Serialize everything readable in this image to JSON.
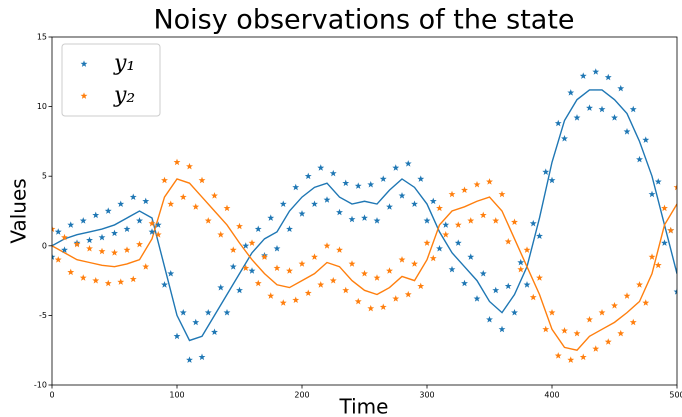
{
  "chart_data": {
    "type": "scatter",
    "title": "Noisy observations of the state",
    "xlabel": "Time",
    "ylabel": "Values",
    "xlim": [
      0,
      500
    ],
    "ylim": [
      -10,
      15
    ],
    "xticks": [
      0,
      100,
      200,
      300,
      400,
      500
    ],
    "yticks": [
      -10,
      -5,
      0,
      5,
      10,
      15
    ],
    "legend": "upper left",
    "x": [
      0,
      5,
      10,
      15,
      20,
      25,
      30,
      35,
      40,
      45,
      50,
      55,
      60,
      65,
      70,
      75,
      80,
      85,
      90,
      95,
      100,
      105,
      110,
      115,
      120,
      125,
      130,
      135,
      140,
      145,
      150,
      155,
      160,
      165,
      170,
      175,
      180,
      185,
      190,
      195,
      200,
      205,
      210,
      215,
      220,
      225,
      230,
      235,
      240,
      245,
      250,
      255,
      260,
      265,
      270,
      275,
      280,
      285,
      290,
      295,
      300,
      305,
      310,
      315,
      320,
      325,
      330,
      335,
      340,
      345,
      350,
      355,
      360,
      365,
      370,
      375,
      380,
      385,
      390,
      395,
      400,
      405,
      410,
      415,
      420,
      425,
      430,
      435,
      440,
      445,
      450,
      455,
      460,
      465,
      470,
      475,
      480,
      485,
      490,
      495,
      500
    ],
    "series": [
      {
        "name": "y₁",
        "color": "#1f77b4",
        "values": [
          -0.8,
          1.0,
          -0.3,
          1.5,
          0.2,
          1.8,
          0.4,
          2.2,
          0.6,
          2.5,
          0.9,
          3.0,
          1.2,
          3.5,
          1.8,
          3.2,
          1.0,
          1.5,
          -2.8,
          -2.0,
          -6.5,
          -4.8,
          -8.2,
          -5.5,
          -8.0,
          -4.8,
          -6.2,
          -3.0,
          -4.8,
          -1.5,
          -3.2,
          0.0,
          -1.8,
          1.2,
          -0.7,
          2.0,
          -0.2,
          3.0,
          1.2,
          4.2,
          2.3,
          5.0,
          3.0,
          5.6,
          3.3,
          5.2,
          2.4,
          4.5,
          1.9,
          4.3,
          2.0,
          4.4,
          1.8,
          4.8,
          2.8,
          5.6,
          3.6,
          5.9,
          3.0,
          4.8,
          1.8,
          3.2,
          -0.2,
          1.5,
          -1.7,
          0.2,
          -2.7,
          -0.8,
          -3.8,
          -2.0,
          -5.3,
          -3.2,
          -6.0,
          -2.9,
          -4.8,
          -1.2,
          -2.8,
          1.6,
          0.7,
          5.3,
          4.7,
          8.8,
          7.7,
          11.0,
          9.2,
          12.2,
          9.9,
          12.5,
          9.8,
          12.1,
          9.2,
          11.3,
          8.2,
          9.8,
          6.2,
          7.6,
          3.7,
          4.6,
          0.2,
          1.1,
          -3.3
        ]
      },
      {
        "name": "y₂",
        "color": "#ff7f0e",
        "values": [
          1.2,
          -1.0,
          0.6,
          -1.9,
          0.1,
          -2.3,
          -0.2,
          -2.5,
          -0.4,
          -2.7,
          -0.5,
          -2.6,
          -0.3,
          -2.4,
          0.1,
          -1.5,
          1.6,
          0.8,
          4.7,
          3.0,
          6.0,
          3.5,
          5.7,
          2.8,
          4.7,
          1.8,
          3.6,
          0.8,
          2.7,
          -0.3,
          1.4,
          -1.6,
          0.2,
          -2.7,
          -0.8,
          -3.6,
          -1.6,
          -4.1,
          -1.8,
          -3.9,
          -1.3,
          -3.4,
          -0.8,
          -2.8,
          0.0,
          -2.5,
          -0.3,
          -3.2,
          -1.3,
          -4.0,
          -2.0,
          -4.5,
          -2.3,
          -4.4,
          -1.8,
          -3.8,
          -1.0,
          -3.5,
          -1.3,
          -2.9,
          0.2,
          -0.9,
          2.7,
          0.8,
          3.7,
          1.5,
          4.0,
          1.8,
          4.4,
          2.2,
          4.6,
          1.8,
          3.7,
          0.3,
          1.7,
          -1.7,
          -0.3,
          -3.7,
          -2.3,
          -6.0,
          -4.8,
          -7.9,
          -6.1,
          -8.2,
          -6.3,
          -8.0,
          -5.3,
          -7.4,
          -4.8,
          -6.9,
          -4.3,
          -6.3,
          -3.6,
          -5.5,
          -2.8,
          -4.1,
          -0.8,
          -1.4,
          2.7,
          1.1,
          4.2
        ]
      }
    ],
    "line_x": [
      0,
      10,
      20,
      30,
      40,
      50,
      60,
      70,
      80,
      90,
      100,
      110,
      120,
      130,
      140,
      150,
      160,
      170,
      180,
      190,
      200,
      210,
      220,
      230,
      240,
      250,
      260,
      270,
      280,
      290,
      300,
      310,
      320,
      330,
      340,
      350,
      360,
      370,
      380,
      390,
      400,
      410,
      420,
      430,
      440,
      450,
      460,
      470,
      480,
      490,
      500
    ],
    "lines": [
      {
        "color": "#1f77b4",
        "values": [
          0,
          0.5,
          0.8,
          1.0,
          1.2,
          1.5,
          2.0,
          2.5,
          2.0,
          -1.5,
          -5,
          -6.8,
          -6.5,
          -5,
          -3.5,
          -2,
          -0.5,
          0.5,
          1,
          2.5,
          3.5,
          4.2,
          4.5,
          3.5,
          3.0,
          3.2,
          3.0,
          4.0,
          4.8,
          4.2,
          3.0,
          1,
          -0.5,
          -1.5,
          -2.5,
          -4.0,
          -4.8,
          -3.5,
          -1.5,
          2,
          6,
          9,
          10.5,
          11.2,
          11.2,
          10.5,
          9.5,
          7.5,
          5,
          1.5,
          -2
        ]
      },
      {
        "color": "#ff7f0e",
        "values": [
          0,
          -0.5,
          -1,
          -1.2,
          -1.4,
          -1.5,
          -1.3,
          -1.0,
          0.5,
          3.5,
          4.8,
          4.5,
          3.5,
          2.5,
          1.5,
          0.2,
          -1.0,
          -2.0,
          -2.8,
          -3.0,
          -2.5,
          -2.0,
          -1.2,
          -1.5,
          -2.5,
          -3.2,
          -3.5,
          -3.0,
          -2.2,
          -2.5,
          -1.0,
          1.5,
          2.5,
          2.8,
          3.2,
          3.5,
          2.5,
          0.5,
          -1.5,
          -3.5,
          -6,
          -7.3,
          -7.5,
          -6.5,
          -6,
          -5.5,
          -4.8,
          -4,
          -2,
          1.5,
          3
        ]
      }
    ]
  }
}
